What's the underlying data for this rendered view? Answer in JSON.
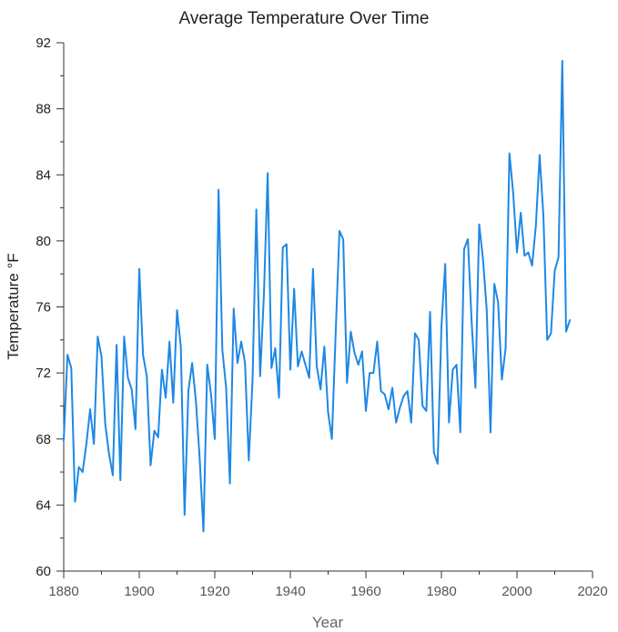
{
  "chart_data": {
    "type": "line",
    "title": "Average Temperature Over Time",
    "xlabel": "Year",
    "ylabel": "Temperature °F",
    "xlim": [
      1880,
      2020
    ],
    "ylim": [
      60,
      92
    ],
    "x_ticks": [
      "1880",
      "1900",
      "1920",
      "1940",
      "1960",
      "1980",
      "2000",
      "2020"
    ],
    "y_ticks": [
      "60",
      "64",
      "68",
      "72",
      "76",
      "80",
      "84",
      "88",
      "92"
    ],
    "grid": false,
    "legend": "none",
    "line_color": "#1e88e5",
    "series": [
      {
        "x": [
          1880,
          1881,
          1882,
          1883,
          1884,
          1885,
          1886,
          1887,
          1888,
          1889,
          1890,
          1891,
          1892,
          1893,
          1894,
          1895,
          1896,
          1897,
          1898,
          1899,
          1900,
          1901,
          1902,
          1903,
          1904,
          1905,
          1906,
          1907,
          1908,
          1909,
          1910,
          1911,
          1912,
          1913,
          1914,
          1915,
          1916,
          1917,
          1918,
          1919,
          1920,
          1921,
          1922,
          1923,
          1924,
          1925,
          1926,
          1927,
          1928,
          1929,
          1930,
          1931,
          1932,
          1933,
          1934,
          1935,
          1936,
          1937,
          1938,
          1939,
          1940,
          1941,
          1942,
          1943,
          1944,
          1945,
          1946,
          1947,
          1948,
          1949,
          1950,
          1951,
          1952,
          1953,
          1954,
          1955,
          1956,
          1957,
          1958,
          1959,
          1960,
          1961,
          1962,
          1963,
          1964,
          1965,
          1966,
          1967,
          1968,
          1969,
          1970,
          1971,
          1972,
          1973,
          1974,
          1975,
          1976,
          1977,
          1978,
          1979,
          1980,
          1981,
          1982,
          1983,
          1984,
          1985,
          1986,
          1987,
          1988,
          1989,
          1990,
          1991,
          1992,
          1993,
          1994,
          1995,
          1996,
          1997,
          1998,
          1999,
          2000,
          2001,
          2002,
          2003,
          2004,
          2005,
          2006,
          2007,
          2008,
          2009,
          2010,
          2011,
          2012,
          2013,
          2014
        ],
        "values": [
          67.9,
          73.1,
          72.3,
          64.2,
          66.3,
          66.0,
          67.7,
          69.8,
          67.7,
          74.2,
          73.0,
          68.9,
          67.1,
          65.8,
          73.7,
          65.5,
          74.2,
          71.7,
          71.0,
          68.6,
          78.3,
          73.1,
          71.8,
          66.4,
          68.5,
          68.1,
          72.2,
          70.5,
          73.9,
          70.2,
          75.8,
          73.6,
          63.4,
          70.9,
          72.6,
          70.3,
          66.8,
          62.4,
          72.5,
          70.7,
          68.0,
          83.1,
          73.4,
          71.1,
          65.3,
          75.9,
          72.6,
          73.9,
          72.6,
          66.7,
          71.6,
          81.9,
          71.8,
          76.7,
          84.1,
          72.3,
          73.5,
          70.5,
          79.6,
          79.8,
          72.2,
          77.1,
          72.4,
          73.3,
          72.5,
          71.7,
          78.3,
          72.4,
          71.0,
          73.6,
          69.6,
          68.0,
          74.4,
          80.6,
          80.1,
          71.4,
          74.5,
          73.2,
          72.5,
          73.3,
          69.7,
          72.0,
          72.0,
          73.9,
          70.9,
          70.7,
          69.8,
          71.1,
          69.0,
          69.9,
          70.6,
          70.9,
          69.0,
          74.4,
          74.0,
          70.0,
          69.7,
          75.7,
          67.2,
          66.5,
          74.8,
          78.6,
          69.0,
          72.2,
          72.5,
          68.4,
          79.5,
          80.1,
          75.1,
          71.1,
          81.0,
          78.9,
          75.8,
          68.4,
          77.4,
          76.3,
          71.6,
          73.5,
          85.3,
          82.9,
          79.3,
          81.7,
          79.1,
          79.3,
          78.5,
          80.9,
          85.2,
          81.5,
          74.0,
          74.4,
          78.2,
          79.0,
          90.9,
          74.5,
          75.2
        ]
      }
    ]
  }
}
